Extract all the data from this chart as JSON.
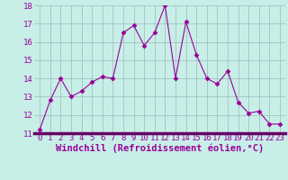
{
  "x": [
    0,
    1,
    2,
    3,
    4,
    5,
    6,
    7,
    8,
    9,
    10,
    11,
    12,
    13,
    14,
    15,
    16,
    17,
    18,
    19,
    20,
    21,
    22,
    23
  ],
  "y": [
    11.2,
    12.8,
    14.0,
    13.0,
    13.3,
    13.8,
    14.1,
    14.0,
    16.5,
    16.9,
    15.8,
    16.5,
    18.0,
    14.0,
    17.1,
    15.3,
    14.0,
    13.7,
    14.4,
    12.7,
    12.1,
    12.2,
    11.5,
    11.5
  ],
  "line_color": "#990099",
  "marker": "D",
  "marker_size": 2.5,
  "bg_color": "#c8eee8",
  "grid_color": "#9bbbb8",
  "bottom_bar_color": "#660066",
  "xlabel": "Windchill (Refroidissement éolien,°C)",
  "xlabel_color": "#990099",
  "xlabel_fontsize": 7.5,
  "tick_label_color": "#990099",
  "tick_fontsize": 6.5,
  "ylim": [
    11,
    18
  ],
  "yticks": [
    11,
    12,
    13,
    14,
    15,
    16,
    17,
    18
  ],
  "xticks": [
    0,
    1,
    2,
    3,
    4,
    5,
    6,
    7,
    8,
    9,
    10,
    11,
    12,
    13,
    14,
    15,
    16,
    17,
    18,
    19,
    20,
    21,
    22,
    23
  ]
}
